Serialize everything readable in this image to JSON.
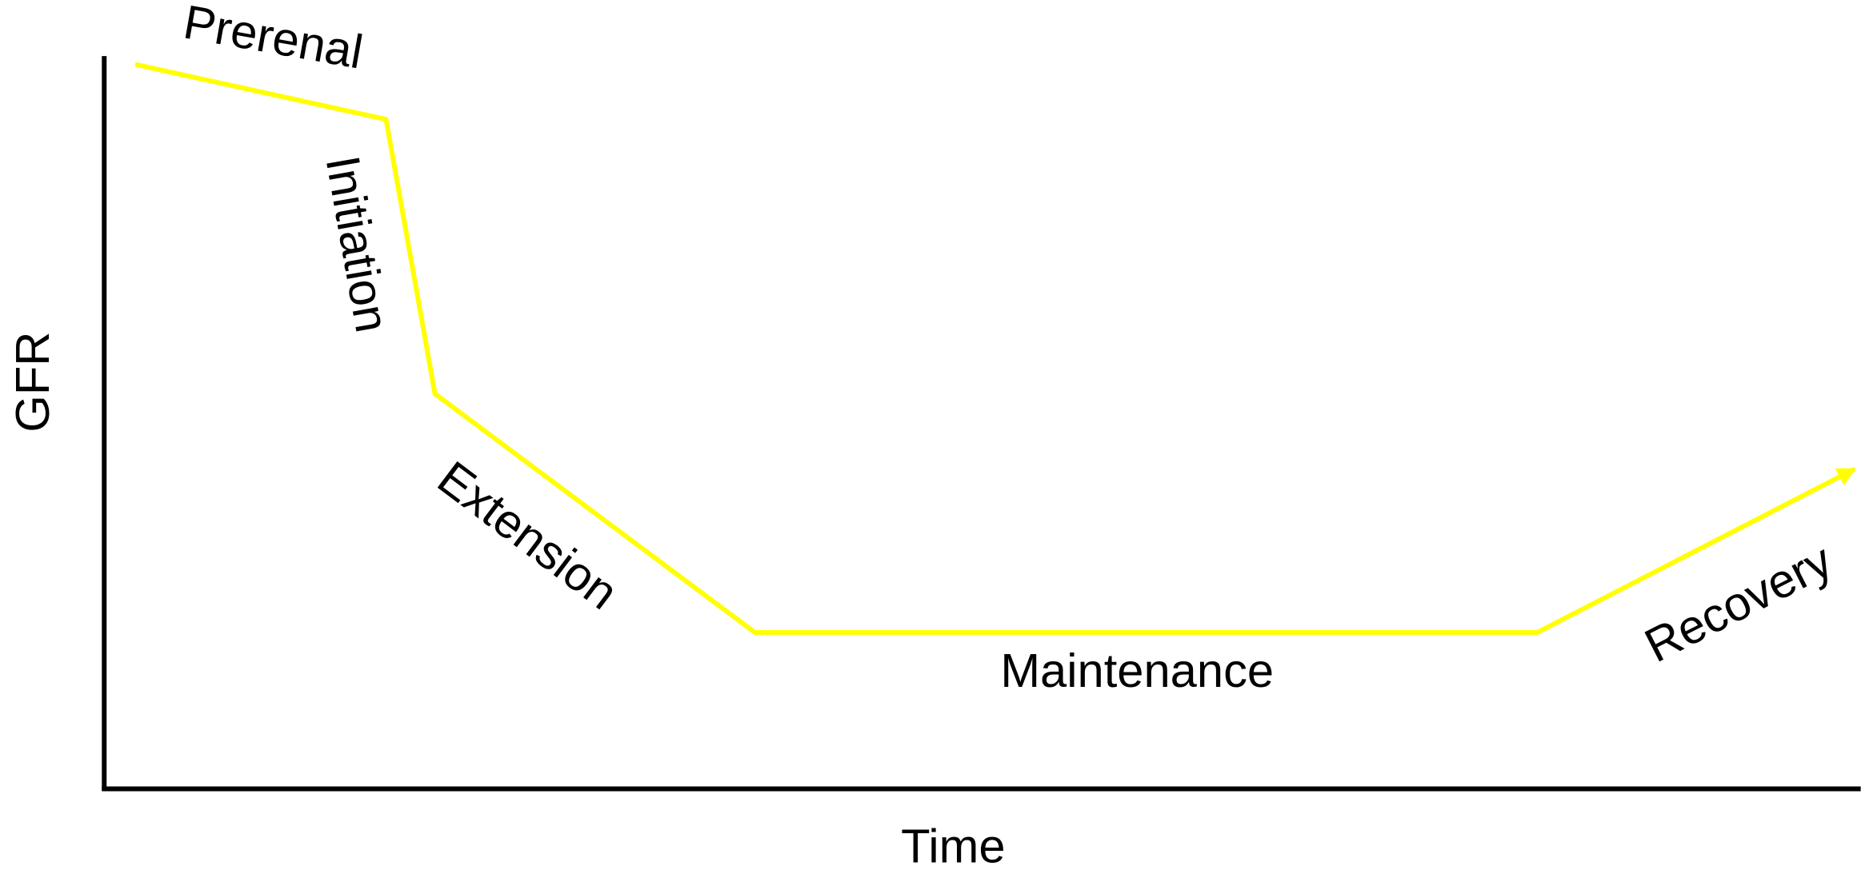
{
  "axes": {
    "y_label": "GFR",
    "x_label": "Time"
  },
  "phases": [
    "Prerenal",
    "Initiation",
    "Extension",
    "Maintenance",
    "Recovery"
  ]
}
